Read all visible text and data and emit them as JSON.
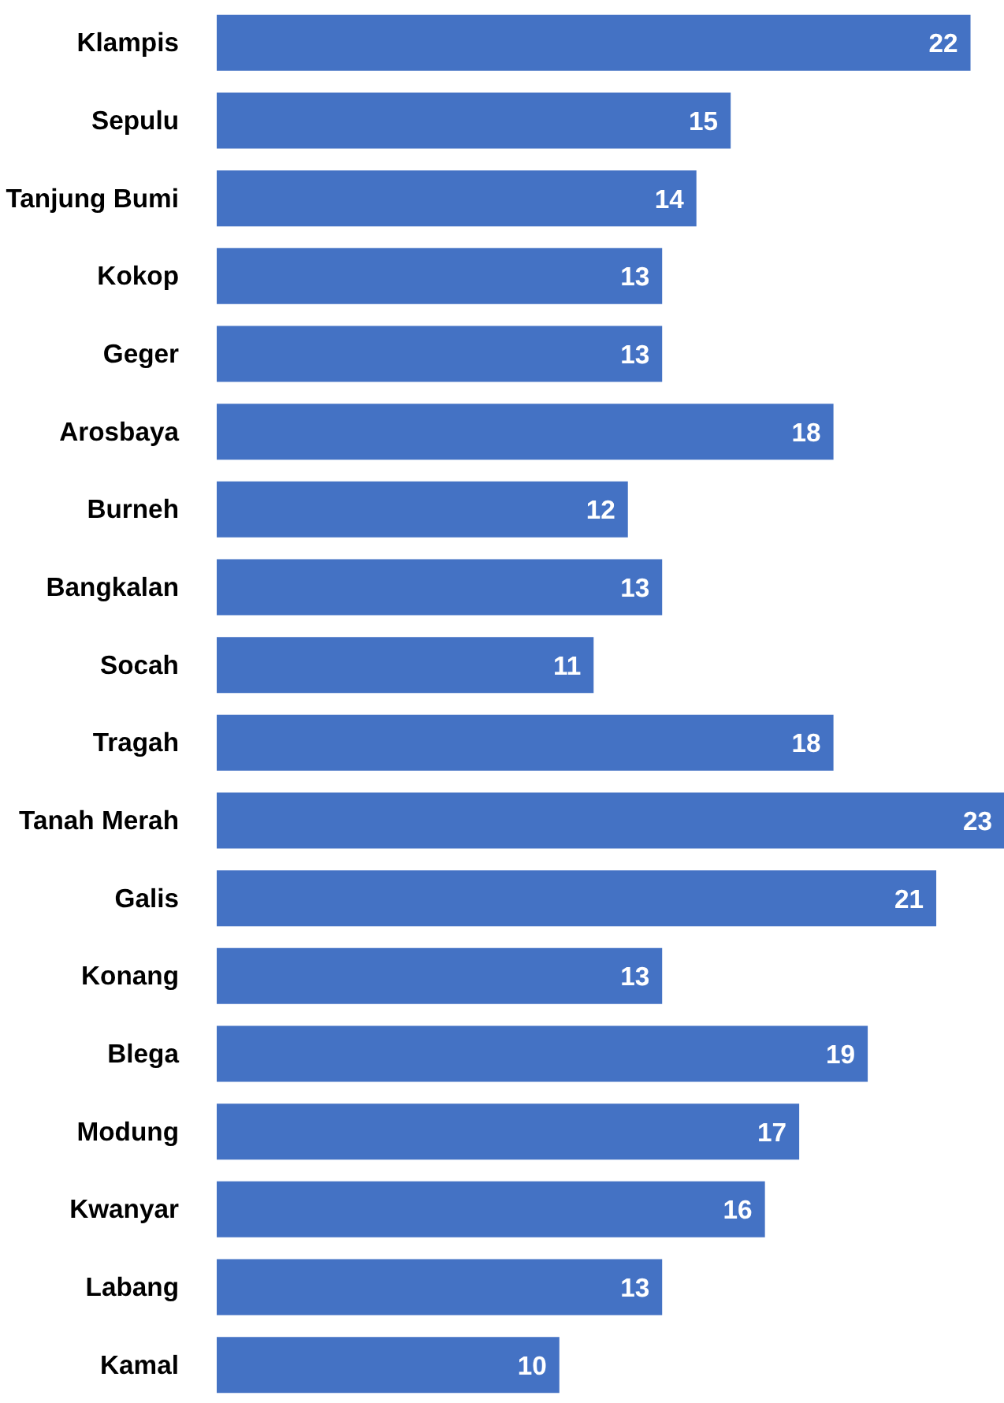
{
  "chart_data": {
    "type": "bar",
    "orientation": "horizontal",
    "categories": [
      "Klampis",
      "Sepulu",
      "Tanjung Bumi",
      "Kokop",
      "Geger",
      "Arosbaya",
      "Burneh",
      "Bangkalan",
      "Socah",
      "Tragah",
      "Tanah Merah",
      "Galis",
      "Konang",
      "Blega",
      "Modung",
      "Kwanyar",
      "Labang",
      "Kamal"
    ],
    "values": [
      22,
      15,
      14,
      13,
      13,
      18,
      12,
      13,
      11,
      18,
      23,
      21,
      13,
      19,
      17,
      16,
      13,
      10
    ],
    "color": "#4472c4",
    "xlim": [
      0,
      23
    ],
    "data_labels": true,
    "grid": false
  }
}
